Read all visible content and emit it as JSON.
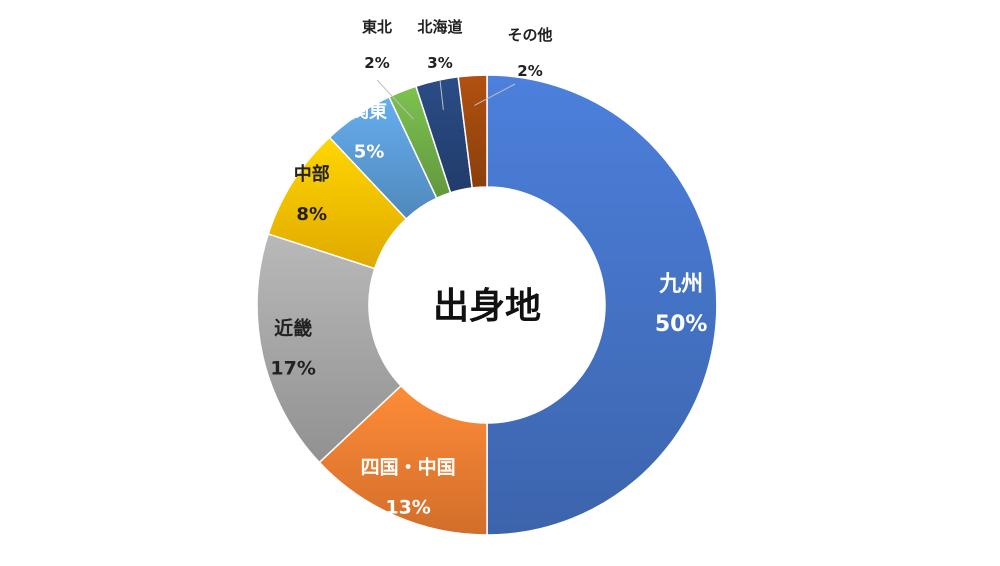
{
  "chart_data": {
    "type": "pie",
    "title": "出身地",
    "categories": [
      "九州",
      "四国・中国",
      "近畿",
      "中部",
      "関東",
      "東北",
      "北海道",
      "その他"
    ],
    "values": [
      50,
      13,
      17,
      8,
      5,
      2,
      3,
      2
    ],
    "value_labels": [
      "50%",
      "13%",
      "17%",
      "8%",
      "5%",
      "2%",
      "3%",
      "2%"
    ],
    "colors": [
      "#4472C4",
      "#ED7D31",
      "#A5A5A5",
      "#FFC000",
      "#5B9BD5",
      "#70AD47",
      "#264478",
      "#9E480E"
    ],
    "label_colors": [
      "#ffffff",
      "#ffffff",
      "#222222",
      "#222222",
      "#ffffff",
      "#222222",
      "#222222",
      "#222222"
    ],
    "legend": "none"
  }
}
